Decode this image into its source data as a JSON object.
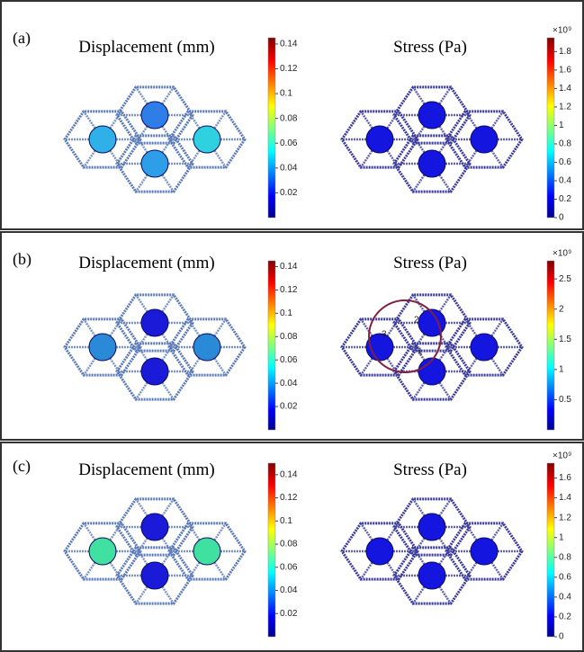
{
  "panels": [
    {
      "label": "(a)",
      "plots": [
        {
          "title": "Displacement (mm)",
          "colorbar": {
            "lim": [
              0,
              0.145
            ],
            "ticks": [
              0.02,
              0.04,
              0.06,
              0.08,
              0.1,
              0.12,
              0.14
            ]
          }
        },
        {
          "title": "Stress (Pa)",
          "colorbar": {
            "multiplier": "×10⁹",
            "lim": [
              0,
              1.95
            ],
            "ticks": [
              0,
              0.2,
              0.4,
              0.6,
              0.8,
              1,
              1.2,
              1.4,
              1.6,
              1.8
            ]
          }
        }
      ]
    },
    {
      "label": "(b)",
      "plots": [
        {
          "title": "Displacement (mm)",
          "colorbar": {
            "lim": [
              0,
              0.145
            ],
            "ticks": [
              0.02,
              0.04,
              0.06,
              0.08,
              0.1,
              0.12,
              0.14
            ]
          }
        },
        {
          "title": "Stress (Pa)",
          "colorbar": {
            "multiplier": "×10⁹",
            "lim": [
              0,
              2.8
            ],
            "ticks": [
              0.5,
              1,
              1.5,
              2,
              2.5
            ]
          },
          "annotations": [
            "1",
            "2",
            "3"
          ]
        }
      ]
    },
    {
      "label": "(c)",
      "plots": [
        {
          "title": "Displacement (mm)",
          "colorbar": {
            "lim": [
              0,
              0.15
            ],
            "ticks": [
              0.02,
              0.04,
              0.06,
              0.08,
              0.1,
              0.12,
              0.14
            ]
          }
        },
        {
          "title": "Stress (Pa)",
          "colorbar": {
            "multiplier": "×10⁹",
            "lim": [
              0,
              1.75
            ],
            "ticks": [
              0,
              0.2,
              0.4,
              0.6,
              0.8,
              1,
              1.2,
              1.4,
              1.6
            ]
          }
        }
      ]
    }
  ]
}
